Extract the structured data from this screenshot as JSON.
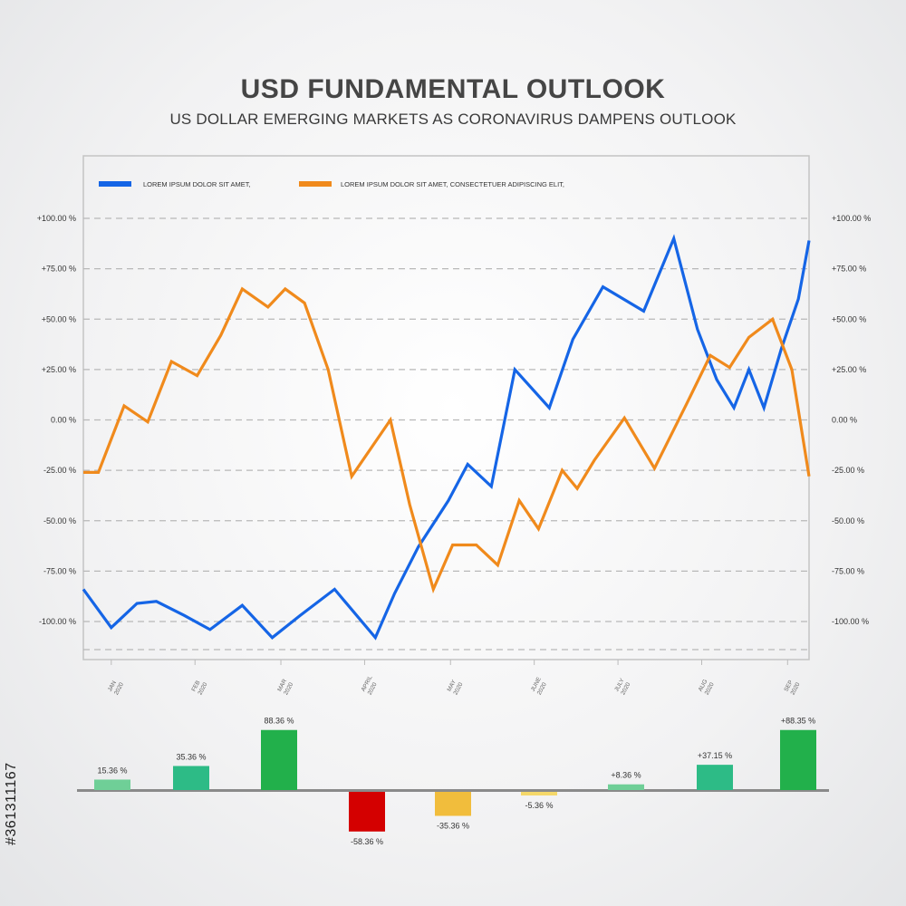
{
  "title": "USD FUNDAMENTAL OUTLOOK",
  "subtitle": "US DOLLAR EMERGING MARKETS AS CORONAVIRUS DAMPENS OUTLOOK",
  "watermark": "#361311167",
  "colors": {
    "blue": "#1565e6",
    "orange": "#f08a1c",
    "grid": "#b8b8b8",
    "bar_light_green": "#6fcf97",
    "bar_teal": "#2dbb86",
    "bar_green": "#22b04b",
    "bar_red": "#d40000",
    "bar_amber": "#f1bd3c",
    "bar_yellow": "#f5d86a"
  },
  "chart_data": [
    {
      "type": "line",
      "y_tick_labels": [
        "+100.00 %",
        "+75.00 %",
        "+50.00 %",
        "+25.00 %",
        "0.00 %",
        "-25.00 %",
        "-50.00 %",
        "-75.00 %",
        "-100.00 %"
      ],
      "y_tick_values": [
        100,
        75,
        50,
        25,
        0,
        -25,
        -50,
        -75,
        -100
      ],
      "ylim": [
        -113,
        114
      ],
      "x_labels": [
        {
          "month": "JAN",
          "year": "2020"
        },
        {
          "month": "FEB",
          "year": "2020"
        },
        {
          "month": "MAR",
          "year": "2020"
        },
        {
          "month": "APRIL",
          "year": "2020"
        },
        {
          "month": "MAY",
          "year": "2020"
        },
        {
          "month": "JUNE",
          "year": "2020"
        },
        {
          "month": "JULY",
          "year": "2020"
        },
        {
          "month": "AUG",
          "year": "2020"
        },
        {
          "month": "SEP",
          "year": "2020"
        }
      ],
      "x_tick_positions": [
        1.3,
        5.2,
        9.2,
        13.1,
        17.1,
        21.0,
        24.9,
        28.8,
        32.8
      ],
      "xlim": [
        0,
        33.8
      ],
      "grid": true,
      "legend_placement": "top-left",
      "series": [
        {
          "name": "LOREM IPSUM DOLOR SIT AMET,",
          "color": "#1565e6",
          "x": [
            0,
            1.3,
            2.5,
            3.4,
            4.7,
            5.9,
            7.4,
            8.8,
            10.1,
            11.7,
            13.6,
            14.5,
            15.6,
            17.0,
            17.9,
            19.0,
            20.1,
            21.7,
            22.8,
            24.2,
            26.1,
            27.5,
            28.6,
            29.5,
            30.3,
            31.0,
            31.7,
            32.5,
            33.3,
            33.8
          ],
          "y": [
            -84,
            -103,
            -91,
            -90,
            -97,
            -104,
            -92,
            -108,
            -97,
            -84,
            -108,
            -86,
            -63,
            -40,
            -22,
            -33,
            25,
            6,
            40,
            66,
            54,
            90,
            45,
            20,
            6,
            25,
            6,
            35,
            60,
            89
          ]
        },
        {
          "name": "LOREM IPSUM DOLOR SIT AMET, CONSECTETUER ADIPISCING ELIT,",
          "color": "#f08a1c",
          "x": [
            0,
            0.7,
            1.9,
            3.0,
            4.1,
            5.3,
            6.4,
            7.4,
            8.6,
            9.4,
            10.3,
            11.4,
            12.5,
            14.3,
            15.2,
            16.3,
            17.2,
            18.3,
            19.3,
            20.3,
            21.2,
            22.3,
            23.0,
            23.8,
            25.2,
            26.6,
            28.1,
            29.2,
            30.1,
            31.0,
            32.1,
            33.0,
            33.8
          ],
          "y": [
            -26,
            -26,
            7,
            -1,
            29,
            22,
            42,
            65,
            56,
            65,
            58,
            25,
            -28,
            0,
            -42,
            -84,
            -62,
            -62,
            -72,
            -40,
            -54,
            -25,
            -34,
            -20,
            1,
            -24,
            8,
            32,
            26,
            41,
            50,
            25,
            -28
          ]
        }
      ]
    },
    {
      "type": "bar",
      "values": [
        15.36,
        35.36,
        88.36,
        -58.36,
        -35.36,
        -5.36,
        8.36,
        37.15,
        88.35
      ],
      "value_labels": [
        "15.36 %",
        "35.36 %",
        "88.36 %",
        "-58.36 %",
        "-35.36 %",
        "-5.36 %",
        "+8.36 %",
        "+37.15 %",
        "+88.35 %"
      ],
      "colors": [
        "#6fcf97",
        "#2dbb86",
        "#22b04b",
        "#d40000",
        "#f1bd3c",
        "#f5d86a",
        "#6fcf97",
        "#2dbb86",
        "#22b04b"
      ],
      "ylim": [
        -60,
        90
      ]
    }
  ]
}
